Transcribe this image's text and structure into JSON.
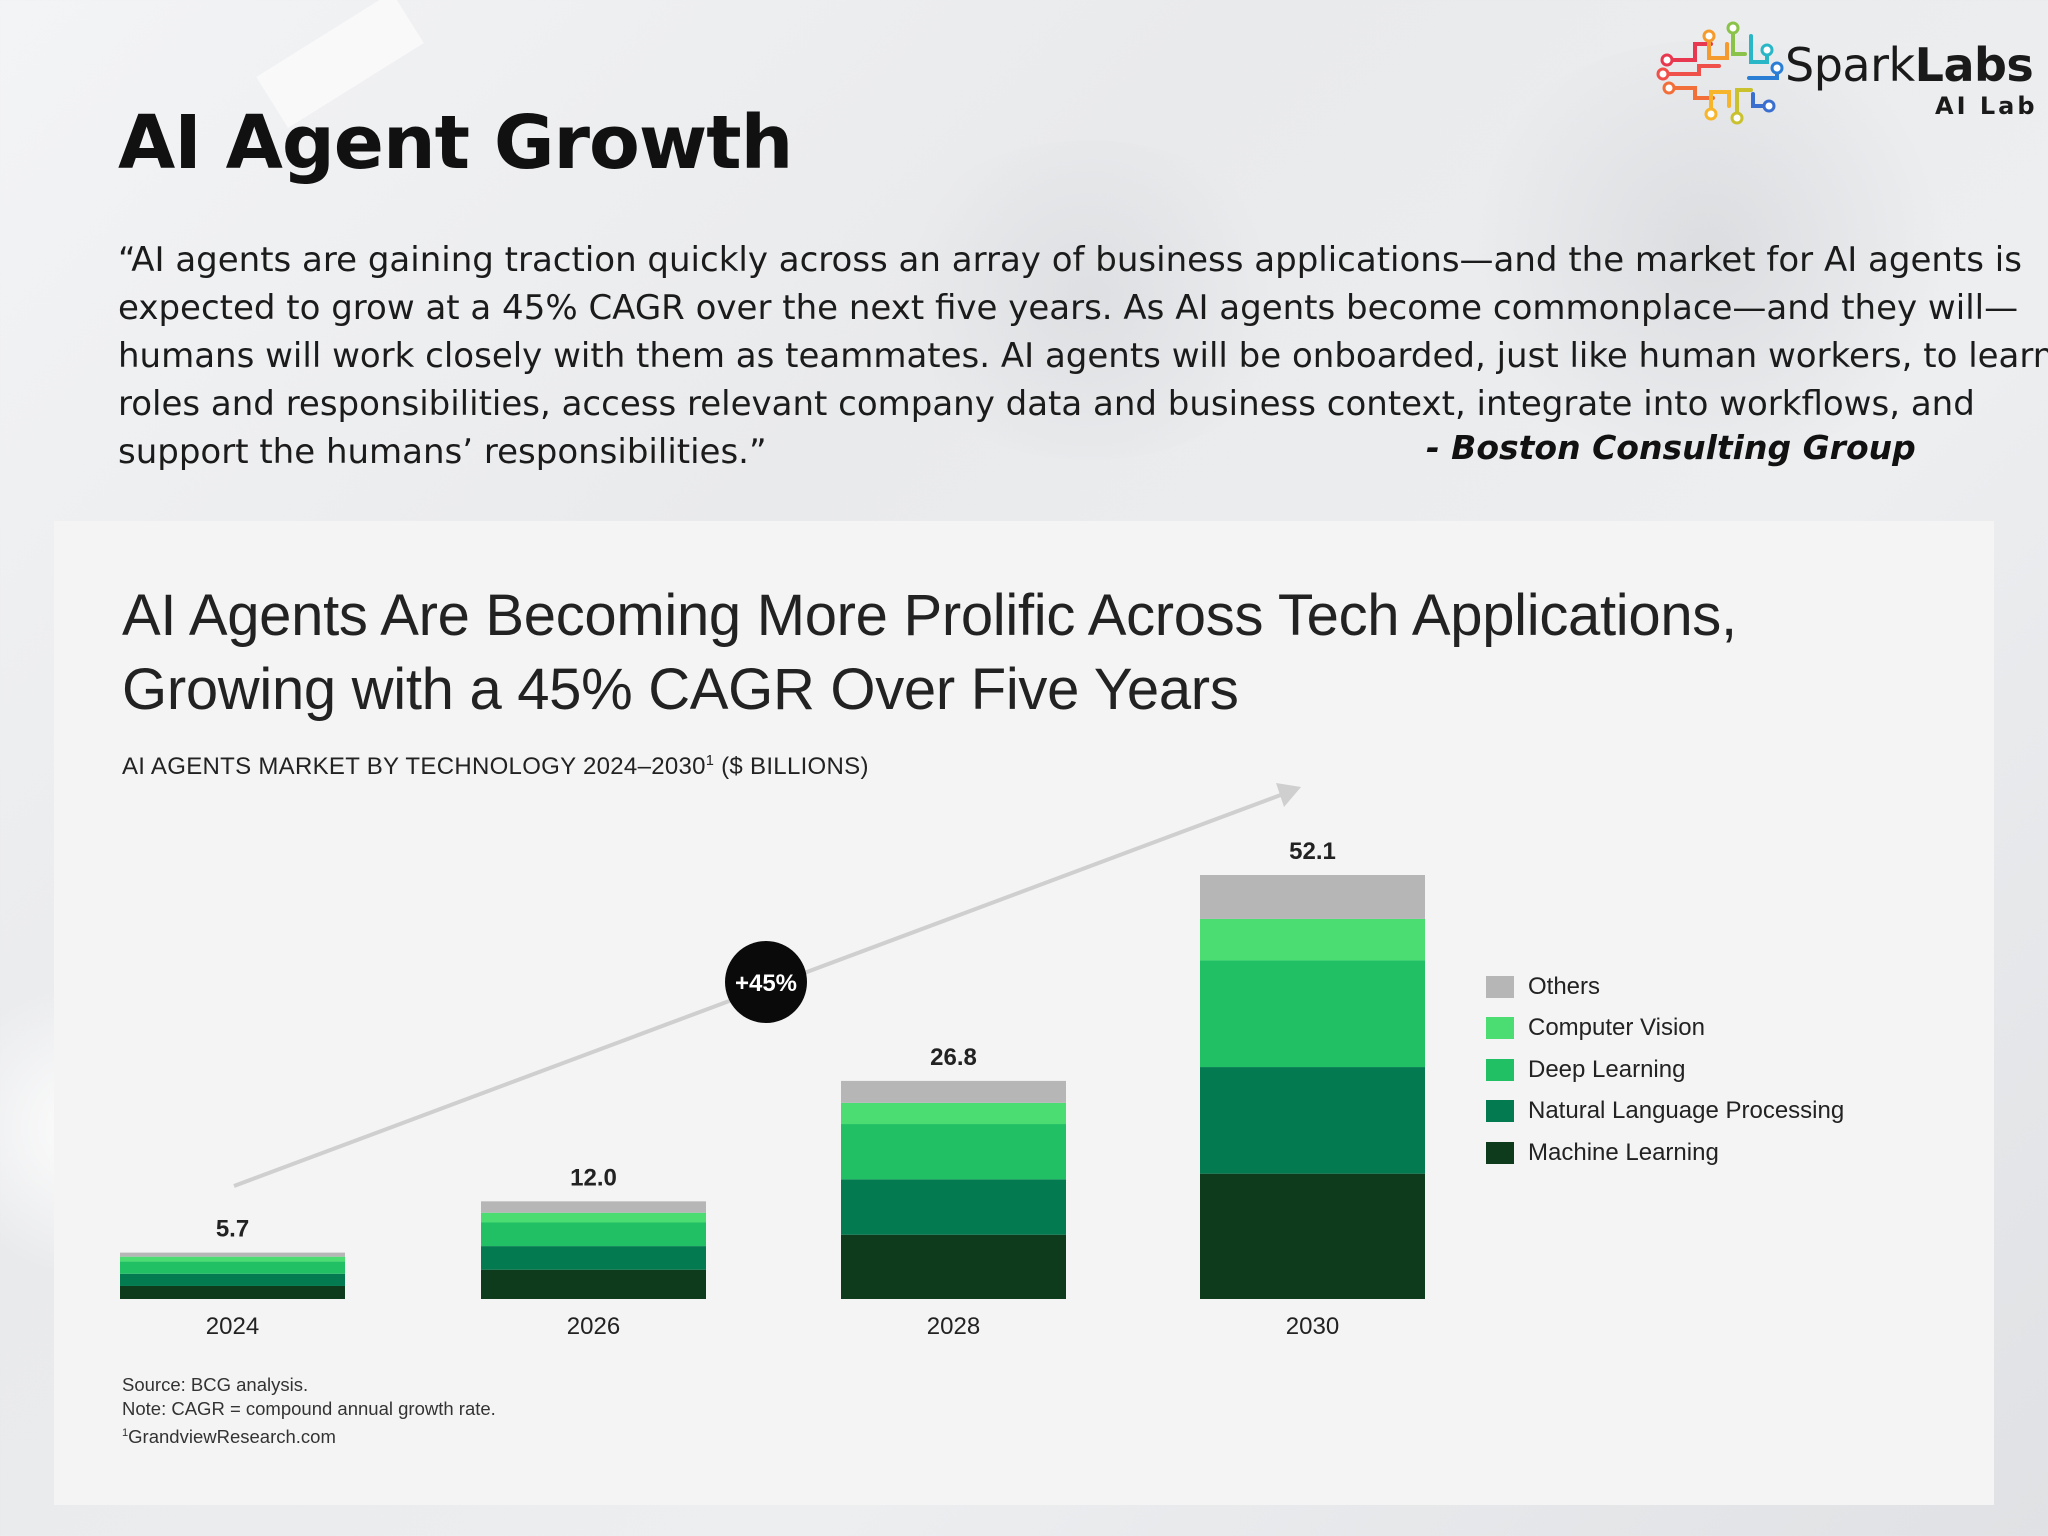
{
  "brand": {
    "name_regular": "Spark",
    "name_bold": "Labs",
    "sub": "AI Lab"
  },
  "page_title": "AI Agent Growth",
  "quote_lines": [
    "“AI agents are gaining traction quickly across an array of business applications—and the market for AI agents is",
    "expected to grow at a 45% CAGR over the next five years. As AI agents become commonplace—and they will—",
    "humans will work closely with them as teammates. AI agents will be onboarded, just like human workers, to learn",
    "roles and responsibilities, access relevant company data and business context, integrate into workflows, and",
    "support the humans’ responsibilities.”"
  ],
  "attribution": "- Boston Consulting Group",
  "chart_data": {
    "type": "bar",
    "stacked": true,
    "title_lines": [
      "AI Agents Are Becoming More Prolific Across Tech Applications,",
      "Growing with a 45% CAGR Over Five Years"
    ],
    "subtitle_main": "AI AGENTS MARKET BY TECHNOLOGY 2024–2030",
    "subtitle_sup": "1",
    "subtitle_unit": " ($ BILLIONS)",
    "categories": [
      "2024",
      "2026",
      "2028",
      "2030"
    ],
    "totals": [
      5.7,
      12.0,
      26.8,
      52.1
    ],
    "total_labels": [
      "5.7",
      "12.0",
      "26.8",
      "52.1"
    ],
    "series": [
      {
        "name": "Machine Learning",
        "color": "#0d3b1b",
        "values": [
          1.6,
          3.6,
          7.9,
          15.4
        ]
      },
      {
        "name": "Natural Language Processing",
        "color": "#047a50",
        "values": [
          1.5,
          2.9,
          6.8,
          13.1
        ]
      },
      {
        "name": "Deep Learning",
        "color": "#22c065",
        "values": [
          1.5,
          2.9,
          6.8,
          13.1
        ]
      },
      {
        "name": "Computer Vision",
        "color": "#4bdc72",
        "values": [
          0.6,
          1.2,
          2.6,
          5.1
        ]
      },
      {
        "name": "Others",
        "color": "#b6b6b6",
        "values": [
          0.5,
          1.4,
          2.7,
          5.4
        ]
      }
    ],
    "legend_order": [
      "Others",
      "Computer Vision",
      "Deep Learning",
      "Natural Language Processing",
      "Machine Learning"
    ],
    "annotation": "+45%",
    "trend_arrow": true,
    "ylim": [
      0,
      52.1
    ],
    "grid": false,
    "legend_position": "right",
    "notes": [
      "Source: BCG analysis.",
      "Note: CAGR = compound annual growth rate."
    ],
    "footnote_mark": "1",
    "footnote_text": "GrandviewResearch.com"
  }
}
